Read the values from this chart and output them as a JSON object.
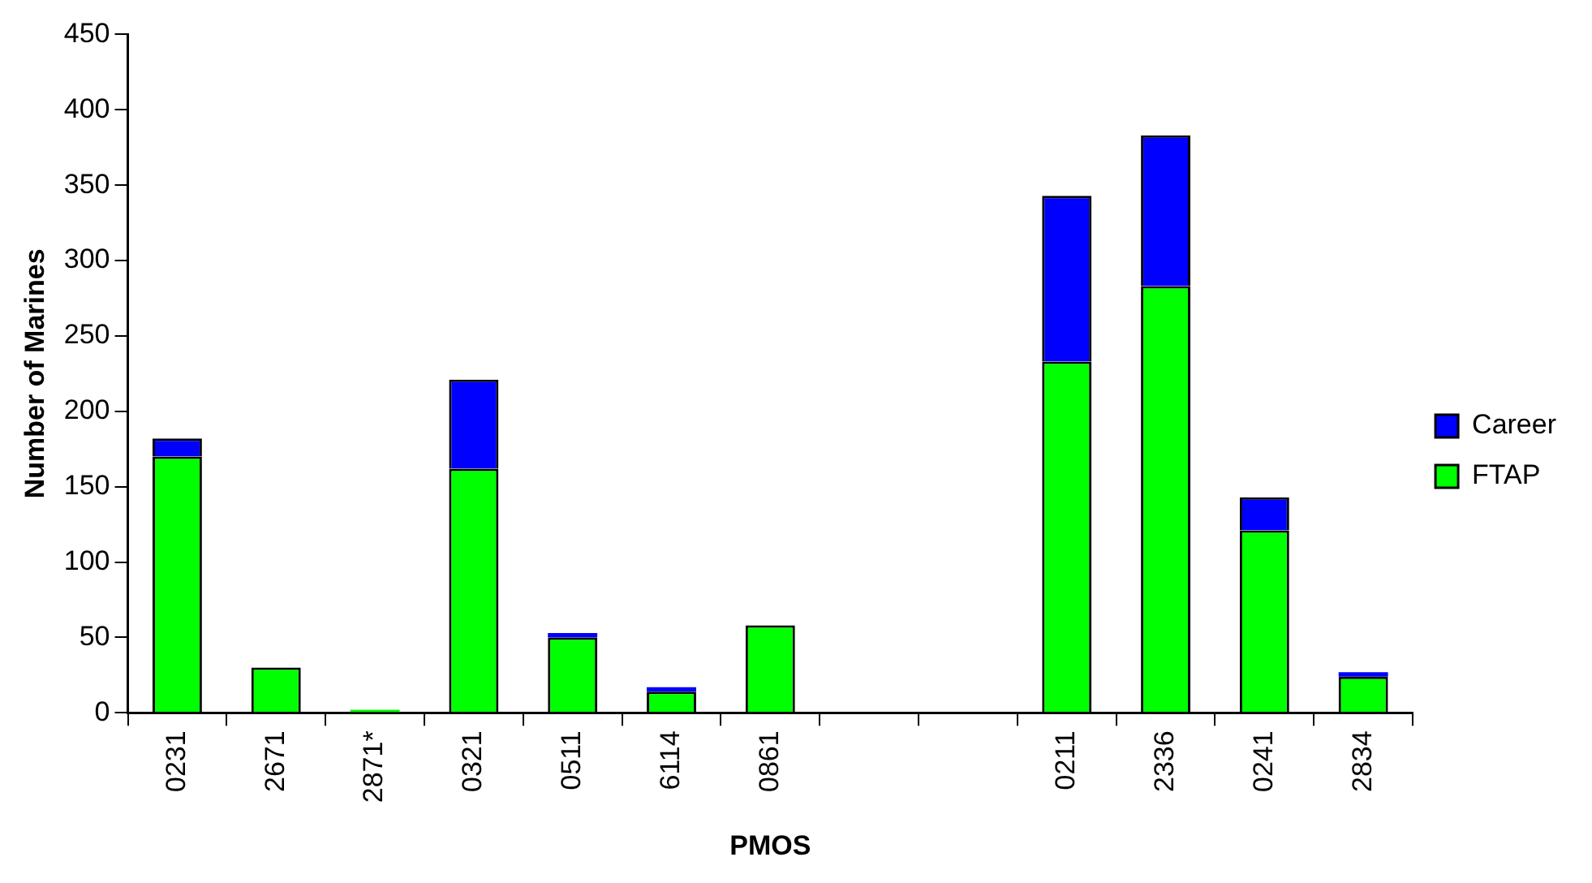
{
  "chart_data": {
    "type": "bar",
    "xlabel": "PMOS",
    "ylabel": "Number of Marines",
    "categories": [
      "0231",
      "2671",
      "2871*",
      "0321",
      "0511",
      "6114",
      "0861",
      null,
      null,
      "0211",
      "2336",
      "0241",
      "2834"
    ],
    "series": [
      {
        "name": "FTAP",
        "color": "#00ff00",
        "values": [
          170,
          30,
          2,
          162,
          50,
          14,
          58,
          null,
          null,
          233,
          283,
          121,
          24
        ]
      },
      {
        "name": "Career",
        "color": "#0000ff",
        "values": [
          12,
          0,
          0,
          59,
          3,
          3,
          0,
          null,
          null,
          110,
          100,
          22,
          3
        ]
      }
    ],
    "stacked": true,
    "ylim": [
      0,
      450
    ],
    "yticks": [
      0,
      50,
      100,
      150,
      200,
      250,
      300,
      350,
      400,
      450
    ],
    "grid": false,
    "legend": "right"
  }
}
